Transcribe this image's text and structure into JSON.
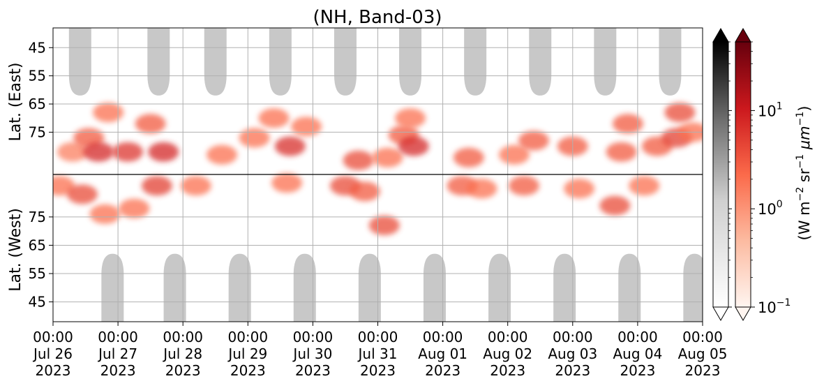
{
  "chart_data": {
    "type": "heatmap",
    "title": "(NH, Band-03)",
    "ylabel_top": "Lat. (East)",
    "ylabel_bottom": "Lat. (West)",
    "colorbar_label_parts": [
      "(W m",
      "−2",
      " sr",
      "−1",
      " μm",
      "−1",
      ")"
    ],
    "colorbar_scale": "log",
    "colorbar_range": [
      0.1,
      50
    ],
    "colorbar_ticks": [
      {
        "value": 0.1,
        "base": "10",
        "exp": "−1"
      },
      {
        "value": 1,
        "base": "10",
        "exp": "0"
      },
      {
        "value": 10,
        "base": "10",
        "exp": "1"
      }
    ],
    "colormaps": {
      "gray": [
        "#ffffff",
        "#000000"
      ],
      "reds": [
        "#fff5f0",
        "#fcbba1",
        "#fb6a4a",
        "#cb181d",
        "#67000d"
      ]
    },
    "colors": {
      "grid": "#b0b0b0",
      "night_fill": "#c8c8c8",
      "divider": "#000000"
    },
    "x_range": [
      "2023-07-26 00:00",
      "2023-08-05 00:00"
    ],
    "x_ticks": [
      {
        "time": "00:00",
        "date": "Jul 26",
        "year": "2023"
      },
      {
        "time": "00:00",
        "date": "Jul 27",
        "year": "2023"
      },
      {
        "time": "00:00",
        "date": "Jul 28",
        "year": "2023"
      },
      {
        "time": "00:00",
        "date": "Jul 29",
        "year": "2023"
      },
      {
        "time": "00:00",
        "date": "Jul 30",
        "year": "2023"
      },
      {
        "time": "00:00",
        "date": "Jul 31",
        "year": "2023"
      },
      {
        "time": "00:00",
        "date": "Aug 01",
        "year": "2023"
      },
      {
        "time": "00:00",
        "date": "Aug 02",
        "year": "2023"
      },
      {
        "time": "00:00",
        "date": "Aug 03",
        "year": "2023"
      },
      {
        "time": "00:00",
        "date": "Aug 04",
        "year": "2023"
      },
      {
        "time": "00:00",
        "date": "Aug 05",
        "year": "2023"
      }
    ],
    "y_ticks_east": [
      "45",
      "55",
      "65",
      "75"
    ],
    "y_ticks_west": [
      "75",
      "65",
      "55",
      "45"
    ],
    "lat_range": [
      38,
      90
    ],
    "grid": true,
    "night_lobes_east": [
      {
        "center": "2023-07-26 10:00",
        "lat_edge": 62
      },
      {
        "center": "2023-07-27 15:00",
        "lat_edge": 62
      },
      {
        "center": "2023-07-28 12:00",
        "lat_edge": 62
      },
      {
        "center": "2023-07-29 12:00",
        "lat_edge": 62
      },
      {
        "center": "2023-07-30 12:00",
        "lat_edge": 62
      },
      {
        "center": "2023-07-31 12:00",
        "lat_edge": 62
      },
      {
        "center": "2023-08-01 12:00",
        "lat_edge": 62
      },
      {
        "center": "2023-08-02 12:00",
        "lat_edge": 62
      },
      {
        "center": "2023-08-03 12:00",
        "lat_edge": 62
      },
      {
        "center": "2023-08-04 12:00",
        "lat_edge": 62
      }
    ],
    "night_lobes_west": [
      {
        "center": "2023-07-26 22:00",
        "lat_edge": 62
      },
      {
        "center": "2023-07-27 21:00",
        "lat_edge": 62
      },
      {
        "center": "2023-07-28 21:00",
        "lat_edge": 62
      },
      {
        "center": "2023-07-29 21:00",
        "lat_edge": 62
      },
      {
        "center": "2023-07-30 21:00",
        "lat_edge": 62
      },
      {
        "center": "2023-07-31 21:00",
        "lat_edge": 62
      },
      {
        "center": "2023-08-01 21:00",
        "lat_edge": 62
      },
      {
        "center": "2023-08-02 21:00",
        "lat_edge": 62
      },
      {
        "center": "2023-08-03 21:00",
        "lat_edge": 62
      },
      {
        "center": "2023-08-04 21:00",
        "lat_edge": 62
      }
    ],
    "emission_clusters": [
      {
        "hemisphere": "east",
        "day": 0.3,
        "lat": 82,
        "value": 1.5
      },
      {
        "hemisphere": "east",
        "day": 0.55,
        "lat": 77,
        "value": 3
      },
      {
        "hemisphere": "east",
        "day": 0.7,
        "lat": 82,
        "value": 8
      },
      {
        "hemisphere": "east",
        "day": 0.85,
        "lat": 68,
        "value": 2
      },
      {
        "hemisphere": "east",
        "day": 1.15,
        "lat": 82,
        "value": 6
      },
      {
        "hemisphere": "east",
        "day": 1.5,
        "lat": 72,
        "value": 3
      },
      {
        "hemisphere": "east",
        "day": 1.7,
        "lat": 82,
        "value": 8
      },
      {
        "hemisphere": "east",
        "day": 2.6,
        "lat": 83,
        "value": 2
      },
      {
        "hemisphere": "east",
        "day": 3.1,
        "lat": 77,
        "value": 2
      },
      {
        "hemisphere": "east",
        "day": 3.4,
        "lat": 70,
        "value": 2
      },
      {
        "hemisphere": "east",
        "day": 3.65,
        "lat": 80,
        "value": 7
      },
      {
        "hemisphere": "east",
        "day": 3.9,
        "lat": 73,
        "value": 2
      },
      {
        "hemisphere": "east",
        "day": 4.7,
        "lat": 85,
        "value": 4
      },
      {
        "hemisphere": "east",
        "day": 5.15,
        "lat": 84,
        "value": 2
      },
      {
        "hemisphere": "east",
        "day": 5.4,
        "lat": 76,
        "value": 3
      },
      {
        "hemisphere": "east",
        "day": 5.55,
        "lat": 80,
        "value": 8
      },
      {
        "hemisphere": "east",
        "day": 5.5,
        "lat": 70,
        "value": 2
      },
      {
        "hemisphere": "east",
        "day": 6.4,
        "lat": 84,
        "value": 3
      },
      {
        "hemisphere": "east",
        "day": 7.1,
        "lat": 83,
        "value": 2
      },
      {
        "hemisphere": "east",
        "day": 7.4,
        "lat": 78,
        "value": 3
      },
      {
        "hemisphere": "east",
        "day": 8.0,
        "lat": 80,
        "value": 3
      },
      {
        "hemisphere": "east",
        "day": 8.75,
        "lat": 82,
        "value": 3
      },
      {
        "hemisphere": "east",
        "day": 8.85,
        "lat": 72,
        "value": 3
      },
      {
        "hemisphere": "east",
        "day": 9.3,
        "lat": 80,
        "value": 3
      },
      {
        "hemisphere": "east",
        "day": 9.6,
        "lat": 77,
        "value": 5
      },
      {
        "hemisphere": "east",
        "day": 9.65,
        "lat": 68,
        "value": 4
      },
      {
        "hemisphere": "east",
        "day": 9.85,
        "lat": 75,
        "value": 2
      },
      {
        "hemisphere": "west",
        "day": 0.1,
        "lat": 86,
        "value": 2
      },
      {
        "hemisphere": "west",
        "day": 0.45,
        "lat": 83,
        "value": 4
      },
      {
        "hemisphere": "west",
        "day": 0.8,
        "lat": 76,
        "value": 2
      },
      {
        "hemisphere": "west",
        "day": 1.25,
        "lat": 78,
        "value": 2
      },
      {
        "hemisphere": "west",
        "day": 1.6,
        "lat": 86,
        "value": 5
      },
      {
        "hemisphere": "west",
        "day": 2.2,
        "lat": 86,
        "value": 2
      },
      {
        "hemisphere": "west",
        "day": 3.6,
        "lat": 87,
        "value": 2
      },
      {
        "hemisphere": "west",
        "day": 4.5,
        "lat": 86,
        "value": 4
      },
      {
        "hemisphere": "west",
        "day": 4.8,
        "lat": 84,
        "value": 3
      },
      {
        "hemisphere": "west",
        "day": 5.1,
        "lat": 72,
        "value": 4
      },
      {
        "hemisphere": "west",
        "day": 6.3,
        "lat": 86,
        "value": 3
      },
      {
        "hemisphere": "west",
        "day": 6.6,
        "lat": 85,
        "value": 2
      },
      {
        "hemisphere": "west",
        "day": 7.25,
        "lat": 86,
        "value": 3
      },
      {
        "hemisphere": "west",
        "day": 8.1,
        "lat": 85,
        "value": 2
      },
      {
        "hemisphere": "west",
        "day": 8.65,
        "lat": 79,
        "value": 4
      },
      {
        "hemisphere": "west",
        "day": 9.1,
        "lat": 86,
        "value": 2
      }
    ]
  }
}
